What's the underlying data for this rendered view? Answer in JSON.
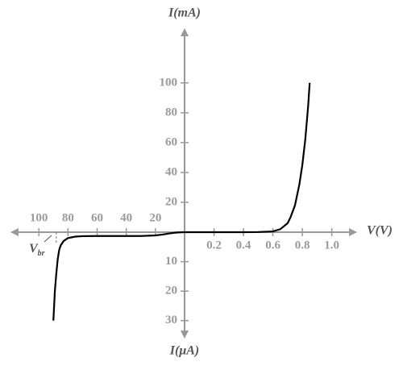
{
  "chart_data": [
    {
      "type": "line",
      "x_label": "V(V)",
      "y_label": "I(mA)",
      "x_direction": "right",
      "y_direction": "up",
      "xlim": [
        0,
        1.15
      ],
      "ylim": [
        0,
        135
      ],
      "xticks": [
        0.2,
        0.4,
        0.6,
        0.8,
        {
          "value": 1,
          "label": "1.0"
        }
      ],
      "yticks": [
        20,
        40,
        60,
        80,
        100
      ],
      "series": [
        {
          "color": "#000000",
          "x": [
            0,
            0.1,
            0.2,
            0.3,
            0.4,
            0.5,
            0.6,
            0.65,
            0.7,
            0.72,
            0.75,
            0.78,
            0.8,
            0.82,
            0.84,
            0.85
          ],
          "values": [
            0,
            0,
            0,
            0,
            0,
            0.1,
            0.5,
            2,
            6,
            10,
            18,
            32,
            45,
            62,
            85,
            100
          ]
        }
      ]
    },
    {
      "type": "line",
      "y_label": "I(μA)",
      "x_direction": "left",
      "y_direction": "down",
      "xlim": [
        0,
        120
      ],
      "ylim": [
        0,
        35
      ],
      "xticks": [
        20,
        40,
        60,
        80,
        100
      ],
      "yticks": [
        10,
        20,
        30
      ],
      "breakdown_voltage": 88,
      "annotation": {
        "text": "V",
        "subscript": "br"
      },
      "series": [
        {
          "color": "#000000",
          "x": [
            0,
            5,
            10,
            15,
            20,
            25,
            30,
            40,
            50,
            60,
            70,
            75,
            80,
            83,
            85,
            86,
            87,
            88,
            89,
            90
          ],
          "values": [
            0,
            0.1,
            0.4,
            0.8,
            1.1,
            1.2,
            1.3,
            1.3,
            1.3,
            1.3,
            1.35,
            1.5,
            2,
            3,
            4.5,
            6,
            9,
            14,
            20,
            30
          ]
        }
      ]
    }
  ]
}
